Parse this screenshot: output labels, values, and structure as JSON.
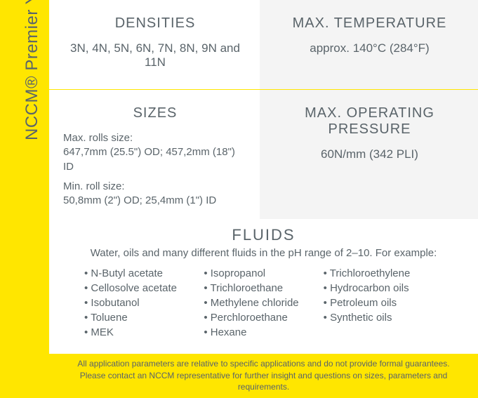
{
  "sidebar": {
    "label": "NCCM® Premier Yellow",
    "bg_color": "#ffe600",
    "text_color": "#5a646a"
  },
  "cells": {
    "densities": {
      "header": "DENSITIES",
      "value": "3N, 4N, 5N, 6N, 7N, 8N, 9N and 11N"
    },
    "max_temp": {
      "header": "MAX. TEMPERATURE",
      "value": "approx. 140°C (284°F)"
    },
    "sizes": {
      "header": "SIZES",
      "max_label": "Max. rolls size:",
      "max_value": "647,7mm (25.5\") OD; 457,2mm (18\") ID",
      "min_label": "Min. roll size:",
      "min_value": "50,8mm (2\") OD; 25,4mm (1\") ID"
    },
    "max_pressure": {
      "header": "MAX. OPERATING PRESSURE",
      "value": "60N/mm (342 PLI)"
    }
  },
  "fluids": {
    "title": "FLUIDS",
    "subtitle": "Water, oils and many different fluids in the pH range of 2–10. For example:",
    "col1": [
      "• N-Butyl acetate",
      "• Cellosolve acetate",
      "• Isobutanol",
      "• Toluene",
      "• MEK"
    ],
    "col2": [
      "• Isopropanol",
      "• Trichloroethane",
      "• Methylene chloride",
      "• Perchloroethane",
      "• Hexane"
    ],
    "col3": [
      "• Trichloroethylene",
      "• Hydrocarbon oils",
      "• Petroleum oils",
      "• Synthetic oils"
    ]
  },
  "footer": {
    "line1": "All application parameters are relative to specific applications and do not provide formal guarantees.",
    "line2": "Please contact an NCCM representative for further insight and questions on sizes, parameters and requirements."
  },
  "colors": {
    "accent": "#ffe600",
    "panel_light": "#ffffff",
    "panel_gray": "#f4f4f4",
    "text": "#5a646a"
  }
}
